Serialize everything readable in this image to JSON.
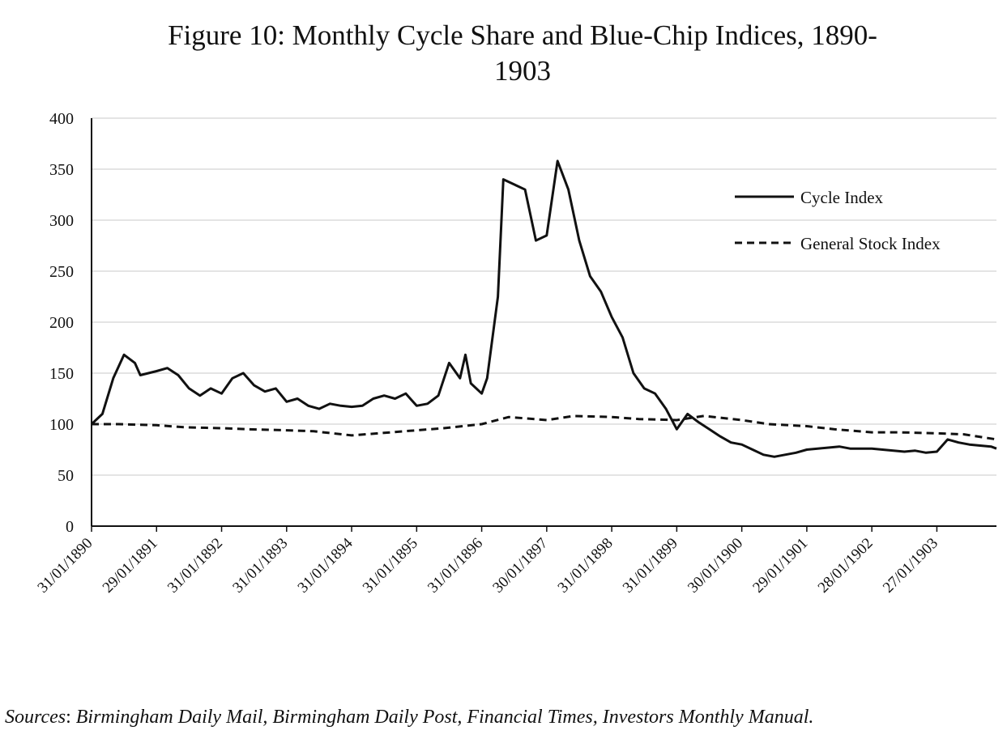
{
  "chart_data": {
    "type": "line",
    "title_line1": "Figure 10: Monthly Cycle Share and Blue-Chip Indices, 1890-",
    "title_line2": "1903",
    "xlabel": "",
    "ylabel": "",
    "ylim": [
      0,
      400
    ],
    "yticks": [
      "0",
      "50",
      "100",
      "150",
      "200",
      "250",
      "300",
      "350",
      "400"
    ],
    "xticks": [
      "31/01/1890",
      "29/01/1891",
      "31/01/1892",
      "31/01/1893",
      "31/01/1894",
      "31/01/1895",
      "31/01/1896",
      "30/01/1897",
      "31/01/1898",
      "31/01/1899",
      "30/01/1900",
      "29/01/1901",
      "28/01/1902",
      "27/01/1903"
    ],
    "grid": true,
    "legend_position": "top-right",
    "series": [
      {
        "name": "Cycle Index",
        "style": "solid",
        "x": [
          "1890-01",
          "1890-03",
          "1890-05",
          "1890-07",
          "1890-09",
          "1890-10",
          "1891-01",
          "1891-03",
          "1891-05",
          "1891-07",
          "1891-09",
          "1891-11",
          "1892-01",
          "1892-03",
          "1892-05",
          "1892-07",
          "1892-09",
          "1892-11",
          "1893-01",
          "1893-03",
          "1893-05",
          "1893-07",
          "1893-09",
          "1893-11",
          "1894-01",
          "1894-03",
          "1894-05",
          "1894-07",
          "1894-09",
          "1894-11",
          "1895-01",
          "1895-03",
          "1895-05",
          "1895-07",
          "1895-09",
          "1895-10",
          "1895-11",
          "1896-01",
          "1896-02",
          "1896-04",
          "1896-05",
          "1896-07",
          "1896-09",
          "1896-11",
          "1897-01",
          "1897-03",
          "1897-05",
          "1897-07",
          "1897-09",
          "1897-11",
          "1898-01",
          "1898-03",
          "1898-05",
          "1898-07",
          "1898-09",
          "1898-11",
          "1899-01",
          "1899-03",
          "1899-05",
          "1899-07",
          "1899-09",
          "1899-11",
          "1900-01",
          "1900-03",
          "1900-05",
          "1900-07",
          "1900-09",
          "1900-11",
          "1901-01",
          "1901-03",
          "1901-05",
          "1901-07",
          "1901-09",
          "1901-11",
          "1902-01",
          "1902-03",
          "1902-05",
          "1902-07",
          "1902-09",
          "1902-11",
          "1903-01",
          "1903-03",
          "1903-05",
          "1903-07",
          "1903-09",
          "1903-11",
          "1903-12"
        ],
        "values": [
          100,
          110,
          145,
          168,
          160,
          148,
          152,
          155,
          148,
          135,
          128,
          135,
          130,
          145,
          150,
          138,
          132,
          135,
          122,
          125,
          118,
          115,
          120,
          118,
          117,
          118,
          125,
          128,
          125,
          130,
          118,
          120,
          128,
          160,
          145,
          168,
          140,
          130,
          145,
          225,
          340,
          335,
          330,
          280,
          285,
          358,
          330,
          280,
          245,
          230,
          205,
          185,
          150,
          135,
          130,
          115,
          95,
          110,
          102,
          95,
          88,
          82,
          80,
          75,
          70,
          68,
          70,
          72,
          75,
          76,
          77,
          78,
          76,
          76,
          76,
          75,
          74,
          73,
          74,
          72,
          73,
          85,
          82,
          80,
          79,
          78,
          76
        ]
      },
      {
        "name": "General Stock Index",
        "style": "dashed",
        "x": [
          "1890-01",
          "1890-06",
          "1891-01",
          "1891-06",
          "1892-01",
          "1892-06",
          "1893-01",
          "1893-06",
          "1894-01",
          "1894-06",
          "1895-01",
          "1895-06",
          "1896-01",
          "1896-06",
          "1897-01",
          "1897-06",
          "1898-01",
          "1898-06",
          "1899-01",
          "1899-06",
          "1900-01",
          "1900-06",
          "1901-01",
          "1901-06",
          "1902-01",
          "1902-06",
          "1903-01",
          "1903-06",
          "1903-12"
        ],
        "values": [
          100,
          100,
          99,
          97,
          96,
          95,
          94,
          93,
          89,
          91,
          94,
          96,
          100,
          107,
          104,
          108,
          107,
          105,
          104,
          108,
          104,
          100,
          98,
          95,
          92,
          92,
          91,
          90,
          85
        ]
      }
    ]
  },
  "sources": {
    "lead": "Sources",
    "colon": ":",
    "text": " Birmingham Daily Mail, Birmingham Daily Post, Financial Times, Investors Monthly Manual."
  }
}
